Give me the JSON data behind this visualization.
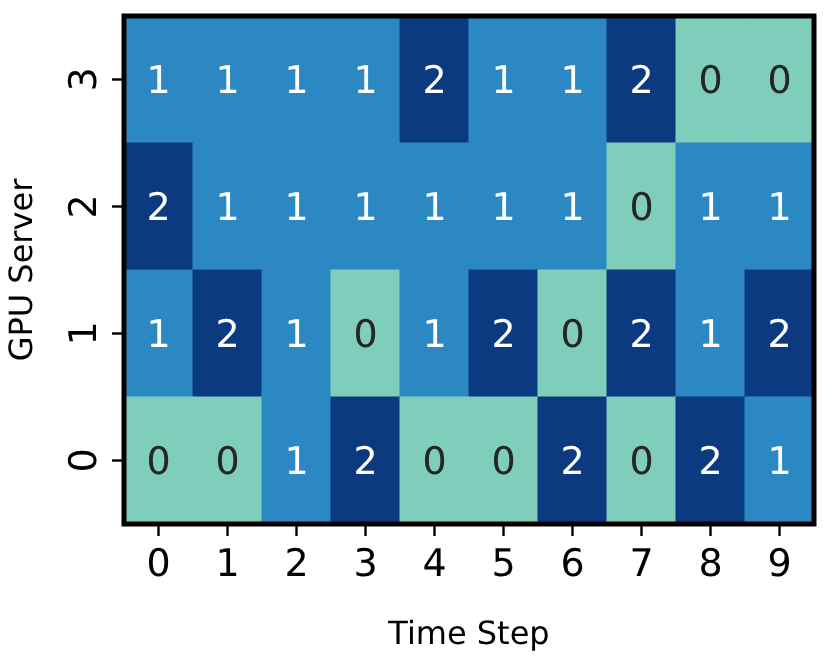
{
  "chart_data": {
    "type": "heatmap",
    "xlabel": "Time Step",
    "ylabel": "GPU Server",
    "categories": [
      "0",
      "1",
      "2",
      "3",
      "4",
      "5",
      "6",
      "7",
      "8",
      "9"
    ],
    "y_categories": [
      "3",
      "2",
      "1",
      "0"
    ],
    "cells": [
      [
        1,
        1,
        1,
        1,
        2,
        1,
        1,
        2,
        0,
        0
      ],
      [
        2,
        1,
        1,
        1,
        1,
        1,
        1,
        0,
        1,
        1
      ],
      [
        1,
        2,
        1,
        0,
        1,
        2,
        0,
        2,
        1,
        2
      ],
      [
        0,
        0,
        1,
        2,
        0,
        0,
        2,
        0,
        2,
        1
      ]
    ],
    "colors": [
      "#7fcdbb",
      "#2c88c2",
      "#0c3a80"
    ],
    "data_labels": true
  }
}
